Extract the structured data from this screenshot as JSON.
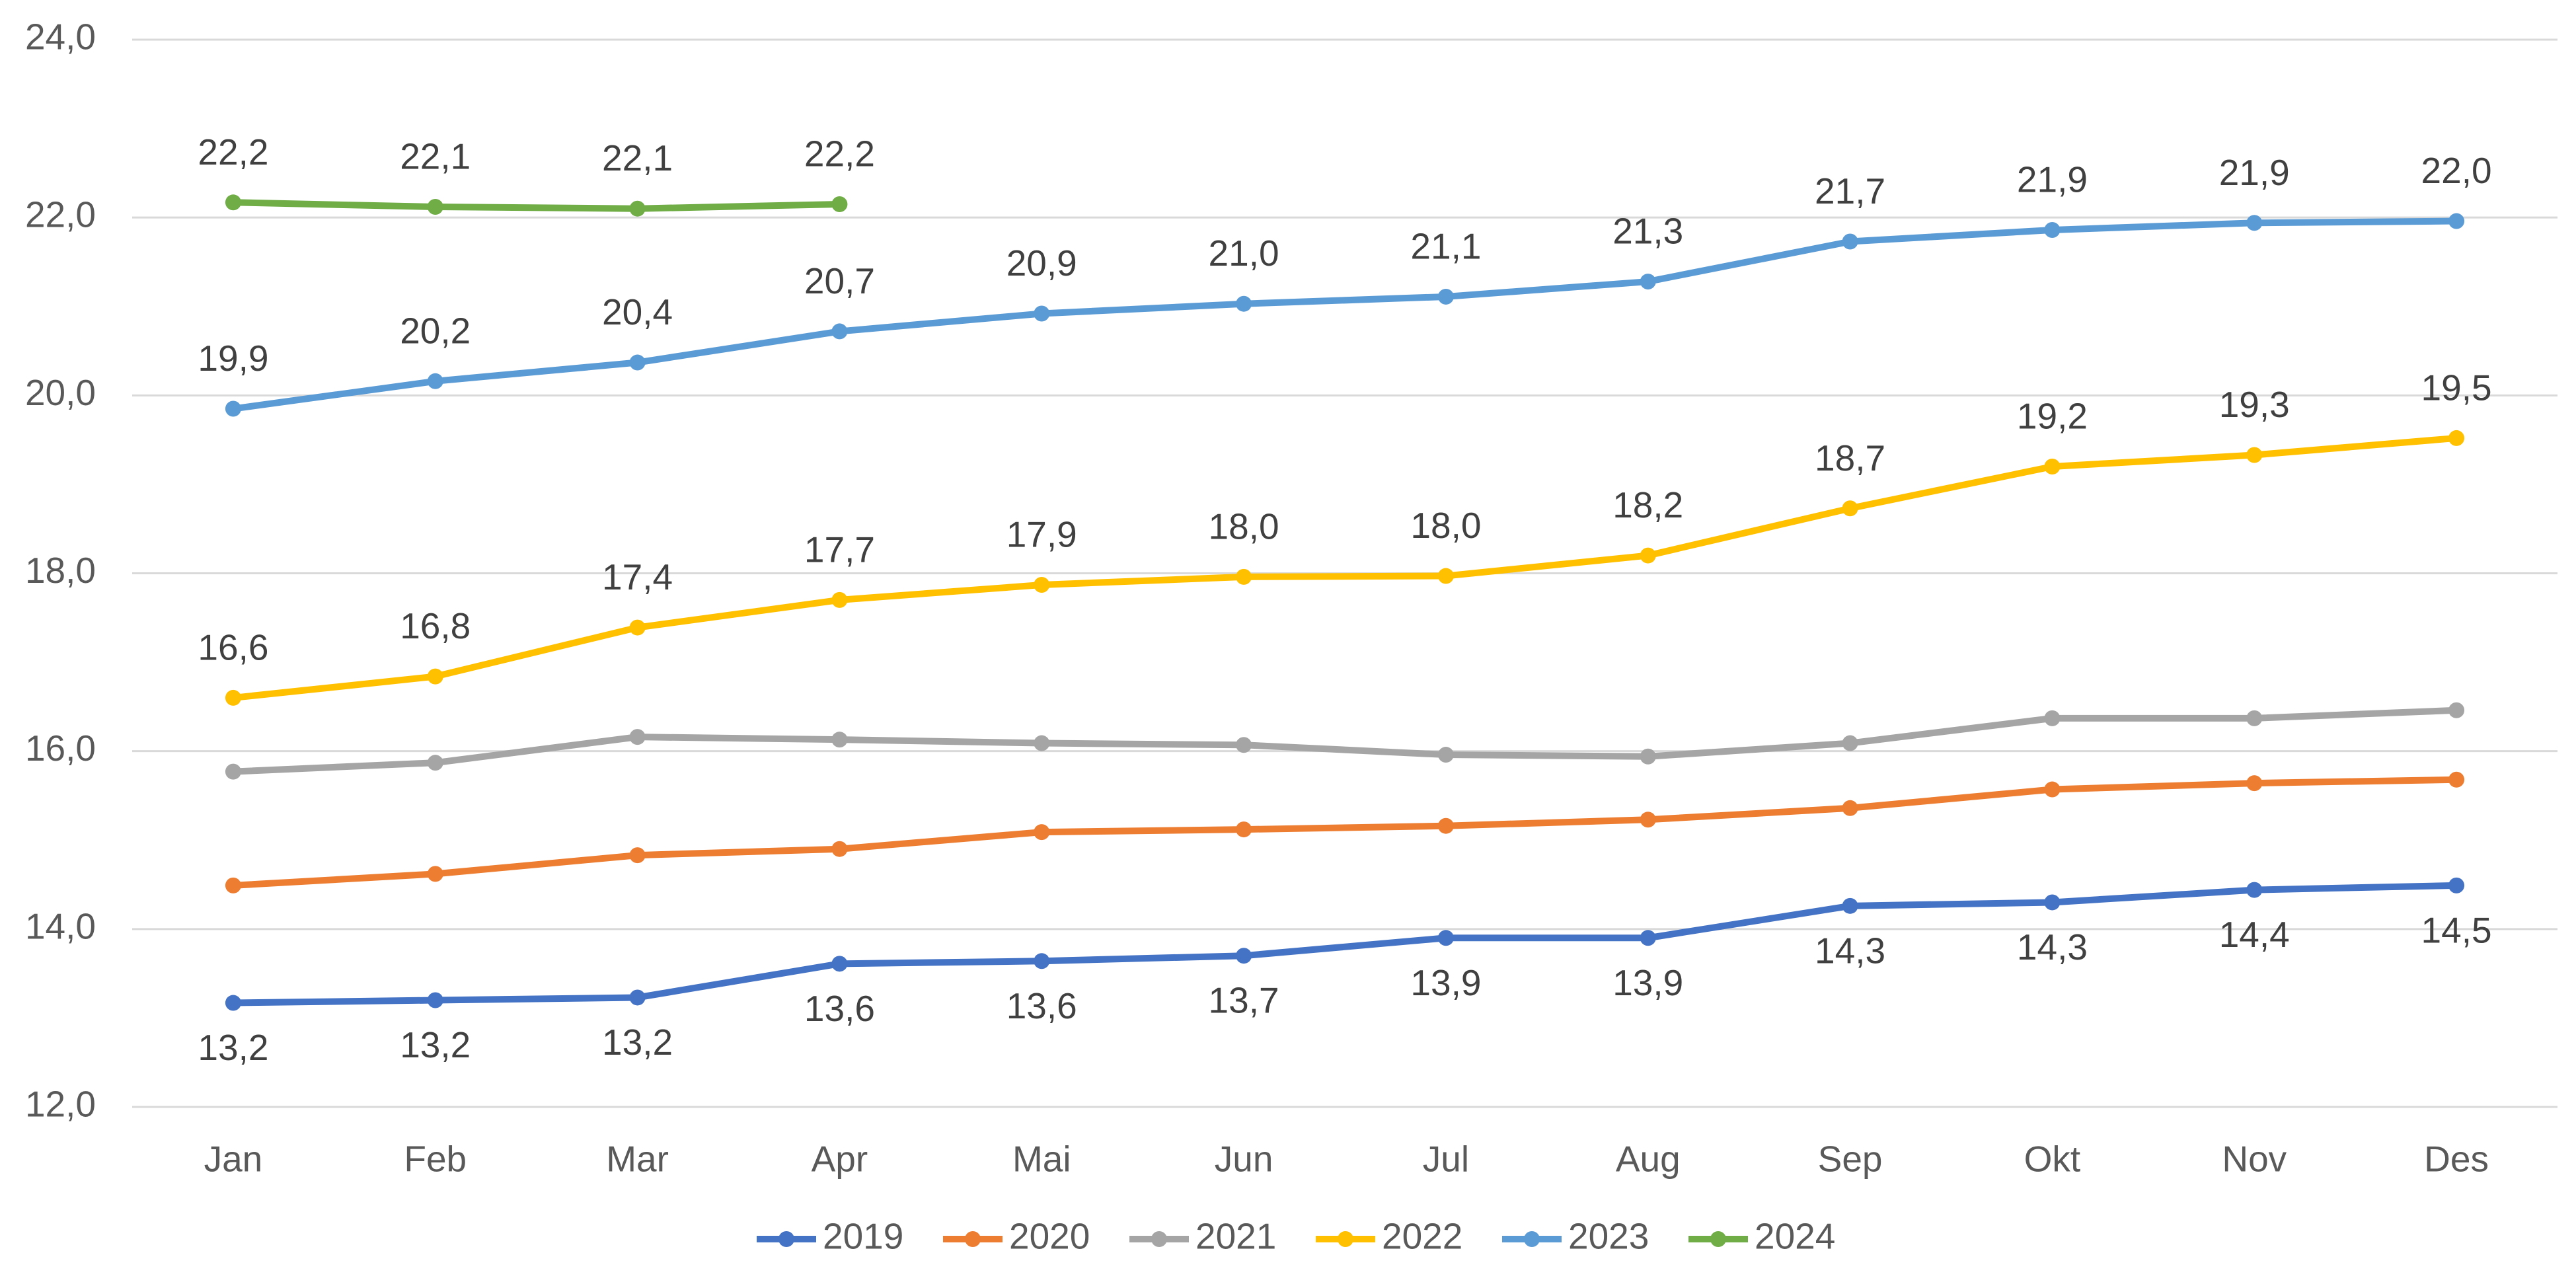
{
  "chart_data": {
    "type": "line",
    "categories": [
      "Jan",
      "Feb",
      "Mar",
      "Apr",
      "Mai",
      "Jun",
      "Jul",
      "Aug",
      "Sep",
      "Okt",
      "Nov",
      "Des"
    ],
    "ylim": [
      12,
      24
    ],
    "yticks": [
      {
        "value": 12,
        "label": "12,0"
      },
      {
        "value": 14,
        "label": "14,0"
      },
      {
        "value": 16,
        "label": "16,0"
      },
      {
        "value": 18,
        "label": "18,0"
      },
      {
        "value": 20,
        "label": "20,0"
      },
      {
        "value": 22,
        "label": "22,0"
      },
      {
        "value": 24,
        "label": "24,0"
      }
    ],
    "grid": true,
    "legend": "bottom",
    "series": [
      {
        "name": "2019",
        "color": "#4472c4",
        "data_label_position": "below",
        "values": [
          13.17,
          13.2,
          13.23,
          13.61,
          13.64,
          13.7,
          13.9,
          13.9,
          14.26,
          14.3,
          14.44,
          14.49
        ],
        "value_labels": [
          "13,2",
          "13,2",
          "13,2",
          "13,6",
          "13,6",
          "13,7",
          "13,9",
          "13,9",
          "14,3",
          "14,3",
          "14,4",
          "14,5"
        ]
      },
      {
        "name": "2020",
        "color": "#ed7d31",
        "values": [
          14.49,
          14.62,
          14.83,
          14.9,
          15.09,
          15.12,
          15.16,
          15.23,
          15.36,
          15.57,
          15.64,
          15.68
        ]
      },
      {
        "name": "2021",
        "color": "#a5a5a5",
        "values": [
          15.77,
          15.87,
          16.16,
          16.13,
          16.09,
          16.07,
          15.96,
          15.94,
          16.09,
          16.37,
          16.37,
          16.46
        ]
      },
      {
        "name": "2022",
        "color": "#ffc000",
        "data_label_position": "above",
        "values": [
          16.6,
          16.84,
          17.39,
          17.7,
          17.87,
          17.96,
          17.97,
          18.2,
          18.73,
          19.2,
          19.33,
          19.52
        ],
        "value_labels": [
          "16,6",
          "16,8",
          "17,4",
          "17,7",
          "17,9",
          "18,0",
          "18,0",
          "18,2",
          "18,7",
          "19,2",
          "19,3",
          "19,5"
        ]
      },
      {
        "name": "2023",
        "color": "#5b9bd5",
        "data_label_position": "above",
        "values": [
          19.85,
          20.16,
          20.37,
          20.72,
          20.92,
          21.03,
          21.11,
          21.28,
          21.73,
          21.86,
          21.94,
          21.96
        ],
        "value_labels": [
          "19,9",
          "20,2",
          "20,4",
          "20,7",
          "20,9",
          "21,0",
          "21,1",
          "21,3",
          "21,7",
          "21,9",
          "21,9",
          "22,0"
        ]
      },
      {
        "name": "2024",
        "color": "#70ad47",
        "data_label_position": "above",
        "values": [
          22.17,
          22.12,
          22.1,
          22.15,
          null,
          null,
          null,
          null,
          null,
          null,
          null,
          null
        ],
        "value_labels": [
          "22,2",
          "22,1",
          "22,1",
          "22,2",
          null,
          null,
          null,
          null,
          null,
          null,
          null,
          null
        ]
      }
    ]
  }
}
